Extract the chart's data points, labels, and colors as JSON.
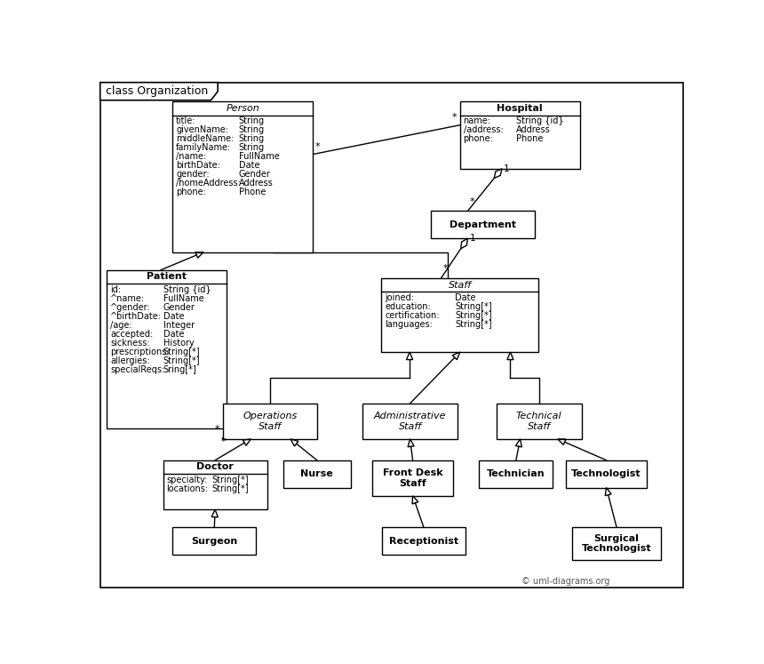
{
  "title": "class Organization",
  "bg_color": "#ffffff",
  "classes_layout": {
    "Person": [
      110,
      32,
      205,
      220
    ],
    "Hospital": [
      530,
      32,
      175,
      98
    ],
    "Department": [
      488,
      192,
      152,
      40
    ],
    "Staff": [
      415,
      290,
      230,
      108
    ],
    "Patient": [
      14,
      278,
      175,
      232
    ],
    "OperationsStaff": [
      183,
      473,
      138,
      52
    ],
    "AdministrativeStaff": [
      388,
      473,
      138,
      52
    ],
    "TechnicalStaff": [
      583,
      473,
      125,
      52
    ],
    "Doctor": [
      96,
      556,
      152,
      72
    ],
    "Nurse": [
      272,
      556,
      98,
      40
    ],
    "FrontDeskStaff": [
      402,
      556,
      118,
      52
    ],
    "Technician": [
      558,
      556,
      108,
      40
    ],
    "Technologist": [
      685,
      556,
      118,
      40
    ],
    "Surgeon": [
      110,
      654,
      122,
      40
    ],
    "Receptionist": [
      416,
      654,
      122,
      40
    ],
    "SurgicalTechnologist": [
      694,
      654,
      130,
      48
    ]
  },
  "class_attrs": {
    "Person": [
      [
        "title:",
        "String"
      ],
      [
        "givenName:",
        "String"
      ],
      [
        "middleName:",
        "String"
      ],
      [
        "familyName:",
        "String"
      ],
      [
        "/name:",
        "FullName"
      ],
      [
        "birthDate:",
        "Date"
      ],
      [
        "gender:",
        "Gender"
      ],
      [
        "/homeAddress:",
        "Address"
      ],
      [
        "phone:",
        "Phone"
      ]
    ],
    "Hospital": [
      [
        "name:",
        "String {id}"
      ],
      [
        "/address:",
        "Address"
      ],
      [
        "phone:",
        "Phone"
      ]
    ],
    "Department": [],
    "Staff": [
      [
        "joined:",
        "Date"
      ],
      [
        "education:",
        "String[*]"
      ],
      [
        "certification:",
        "String[*]"
      ],
      [
        "languages:",
        "String[*]"
      ]
    ],
    "Patient": [
      [
        "id:",
        "String {id}"
      ],
      [
        "^name:",
        "FullName"
      ],
      [
        "^gender:",
        "Gender"
      ],
      [
        "^birthDate:",
        "Date"
      ],
      [
        "/age:",
        "Integer"
      ],
      [
        "accepted:",
        "Date"
      ],
      [
        "sickness:",
        "History"
      ],
      [
        "prescriptions:",
        "String[*]"
      ],
      [
        "allergies:",
        "String[*]"
      ],
      [
        "specialReqs:",
        "Sring[*]"
      ]
    ],
    "OperationsStaff": [],
    "AdministrativeStaff": [],
    "TechnicalStaff": [],
    "Doctor": [
      [
        "specialty:",
        "String[*]"
      ],
      [
        "locations:",
        "String[*]"
      ]
    ],
    "Nurse": [],
    "FrontDeskStaff": [],
    "Technician": [],
    "Technologist": [],
    "Surgeon": [],
    "Receptionist": [],
    "SurgicalTechnologist": []
  },
  "italic_classes": [
    "Person",
    "Staff",
    "OperationsStaff",
    "AdministrativeStaff",
    "TechnicalStaff"
  ],
  "display_names": {
    "Person": "Person",
    "Hospital": "Hospital",
    "Department": "Department",
    "Staff": "Staff",
    "Patient": "Patient",
    "OperationsStaff": "Operations\nStaff",
    "AdministrativeStaff": "Administrative\nStaff",
    "TechnicalStaff": "Technical\nStaff",
    "Doctor": "Doctor",
    "Nurse": "Nurse",
    "FrontDeskStaff": "Front Desk\nStaff",
    "Technician": "Technician",
    "Technologist": "Technologist",
    "Surgeon": "Surgeon",
    "Receptionist": "Receptionist",
    "SurgicalTechnologist": "Surgical\nTechnologist"
  },
  "copyright": "© uml-diagrams.org"
}
